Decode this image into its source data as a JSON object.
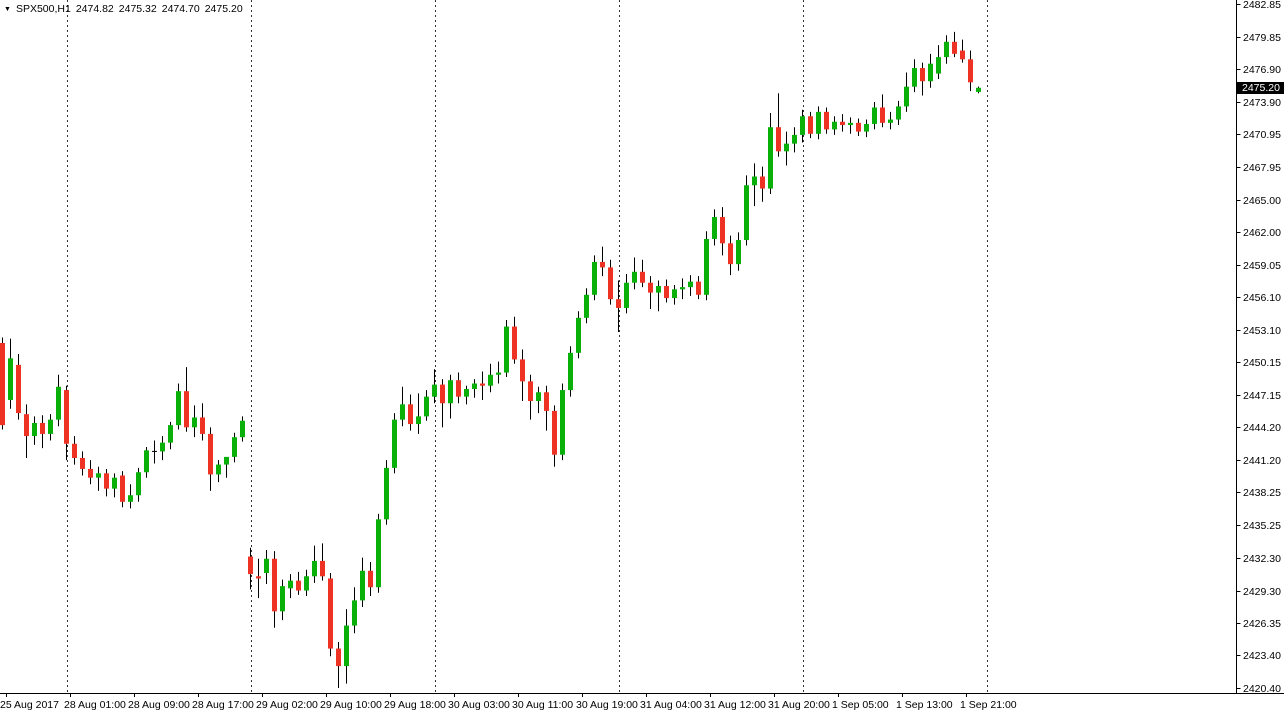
{
  "title": {
    "symbol_tf": "SPX500,H1",
    "open": "2474.82",
    "high": "2475.32",
    "low": "2474.70",
    "close": "2475.20"
  },
  "price_axis": {
    "labels": [
      "2482.85",
      "2479.85",
      "2476.90",
      "2473.90",
      "2470.95",
      "2467.95",
      "2465.00",
      "2462.00",
      "2459.05",
      "2456.10",
      "2453.10",
      "2450.15",
      "2447.15",
      "2444.20",
      "2441.20",
      "2438.25",
      "2435.25",
      "2432.30",
      "2429.30",
      "2426.35",
      "2423.40",
      "2420.40"
    ],
    "current_price": "2475.20"
  },
  "time_axis": {
    "labels": [
      "25 Aug 2017",
      "28 Aug 01:00",
      "28 Aug 09:00",
      "28 Aug 17:00",
      "29 Aug 02:00",
      "29 Aug 10:00",
      "29 Aug 18:00",
      "30 Aug 03:00",
      "30 Aug 11:00",
      "30 Aug 19:00",
      "31 Aug 04:00",
      "31 Aug 12:00",
      "31 Aug 20:00",
      "1 Sep 05:00",
      "1 Sep 13:00",
      "1 Sep 21:00"
    ]
  },
  "colors": {
    "background": "#ffffff",
    "bull": "#0ab00a",
    "bear": "#ee3224",
    "wick": "#000000",
    "grid": "#333333",
    "axis": "#000000",
    "label": "#000000",
    "badge_bg": "#000000",
    "badge_text": "#ffffff"
  },
  "chart_data": {
    "type": "candlestick",
    "title": "SPX500,H1",
    "symbol": "SPX500",
    "timeframe": "H1",
    "current_candle": {
      "open": 2474.82,
      "high": 2475.32,
      "low": 2474.7,
      "close": 2475.2
    },
    "price_range": [
      2420.4,
      2482.85
    ],
    "grid": "vertical-dashed-day-separators",
    "legend_position": "none",
    "day_separators": [
      8.125,
      31.125,
      54.125,
      77.125,
      100.125,
      123.125
    ],
    "candles": [
      [
        2451.9,
        2452.4,
        2444.0,
        2444.4
      ],
      [
        2446.7,
        2452.3,
        2445.9,
        2450.5
      ],
      [
        2449.9,
        2450.9,
        2444.9,
        2445.5
      ],
      [
        2445.4,
        2446.3,
        2441.4,
        2443.4
      ],
      [
        2443.4,
        2445.2,
        2442.6,
        2444.6
      ],
      [
        2444.6,
        2445.3,
        2442.3,
        2443.6
      ],
      [
        2443.6,
        2445.4,
        2443.0,
        2444.9
      ],
      [
        2444.9,
        2449.0,
        2444.3,
        2447.9
      ],
      [
        2447.6,
        2448.0,
        2441.2,
        2442.7
      ],
      [
        2442.7,
        2443.4,
        2440.8,
        2441.4
      ],
      [
        2441.4,
        2442.0,
        2439.8,
        2440.4
      ],
      [
        2440.4,
        2441.2,
        2439.0,
        2439.6
      ],
      [
        2439.6,
        2440.6,
        2438.4,
        2440.0
      ],
      [
        2440.0,
        2440.4,
        2437.9,
        2438.6
      ],
      [
        2438.6,
        2440.0,
        2437.8,
        2439.6
      ],
      [
        2439.8,
        2440.2,
        2436.9,
        2437.4
      ],
      [
        2437.4,
        2439.0,
        2436.8,
        2438.0
      ],
      [
        2438.0,
        2440.5,
        2437.4,
        2440.1
      ],
      [
        2440.1,
        2442.4,
        2439.6,
        2442.1
      ],
      [
        2442.1,
        2443.0,
        2440.9,
        2442.0
      ],
      [
        2442.0,
        2443.4,
        2441.2,
        2442.8
      ],
      [
        2442.8,
        2444.7,
        2442.2,
        2444.4
      ],
      [
        2444.4,
        2448.2,
        2444.0,
        2447.5
      ],
      [
        2447.5,
        2449.7,
        2443.8,
        2444.2
      ],
      [
        2444.2,
        2446.2,
        2443.3,
        2445.1
      ],
      [
        2445.1,
        2446.4,
        2443.0,
        2443.6
      ],
      [
        2443.6,
        2444.2,
        2438.4,
        2439.9
      ],
      [
        2439.9,
        2441.2,
        2439.2,
        2440.8
      ],
      [
        2440.8,
        2441.4,
        2439.6,
        2441.5
      ],
      [
        2441.5,
        2443.7,
        2441.0,
        2443.3
      ],
      [
        2443.3,
        2445.2,
        2442.9,
        2444.8
      ],
      [
        2432.4,
        2433.2,
        2429.4,
        2430.8
      ],
      [
        2430.6,
        2432.2,
        2428.6,
        2430.4
      ],
      [
        2430.9,
        2433.0,
        2429.9,
        2432.2
      ],
      [
        2432.2,
        2432.9,
        2425.9,
        2427.4
      ],
      [
        2427.4,
        2430.3,
        2426.6,
        2429.7
      ],
      [
        2429.5,
        2430.8,
        2428.6,
        2430.2
      ],
      [
        2430.2,
        2431.0,
        2428.9,
        2429.3
      ],
      [
        2429.3,
        2431.2,
        2428.8,
        2430.6
      ],
      [
        2430.6,
        2433.4,
        2430.0,
        2432.0
      ],
      [
        2432.0,
        2433.6,
        2430.2,
        2430.6
      ],
      [
        2430.4,
        2430.9,
        2423.3,
        2424.0
      ],
      [
        2424.0,
        2424.6,
        2420.4,
        2422.4
      ],
      [
        2422.4,
        2427.6,
        2420.8,
        2426.1
      ],
      [
        2426.1,
        2429.6,
        2425.4,
        2428.4
      ],
      [
        2428.4,
        2432.3,
        2427.8,
        2431.1
      ],
      [
        2431.1,
        2431.9,
        2428.8,
        2429.6
      ],
      [
        2429.6,
        2436.3,
        2429.1,
        2435.8
      ],
      [
        2435.8,
        2441.2,
        2435.3,
        2440.5
      ],
      [
        2440.5,
        2445.5,
        2440.0,
        2444.9
      ],
      [
        2444.9,
        2447.9,
        2444.3,
        2446.3
      ],
      [
        2446.3,
        2447.2,
        2443.9,
        2444.5
      ],
      [
        2444.5,
        2447.3,
        2443.6,
        2445.2
      ],
      [
        2445.2,
        2447.6,
        2444.8,
        2447.0
      ],
      [
        2447.0,
        2449.5,
        2446.4,
        2448.1
      ],
      [
        2448.1,
        2448.6,
        2444.2,
        2446.4
      ],
      [
        2446.4,
        2449.0,
        2445.0,
        2448.5
      ],
      [
        2448.5,
        2449.2,
        2446.4,
        2447.0
      ],
      [
        2447.0,
        2448.0,
        2446.3,
        2447.7
      ],
      [
        2447.7,
        2448.6,
        2446.9,
        2448.2
      ],
      [
        2448.2,
        2449.3,
        2446.7,
        2448.0
      ],
      [
        2448.0,
        2450.0,
        2447.4,
        2449.0
      ],
      [
        2449.0,
        2450.2,
        2448.2,
        2449.2
      ],
      [
        2449.2,
        2454.0,
        2448.8,
        2453.4
      ],
      [
        2453.4,
        2454.3,
        2450.0,
        2450.4
      ],
      [
        2450.4,
        2451.3,
        2446.6,
        2448.4
      ],
      [
        2448.4,
        2449.0,
        2444.9,
        2446.6
      ],
      [
        2446.6,
        2447.9,
        2445.5,
        2447.4
      ],
      [
        2447.4,
        2448.0,
        2443.9,
        2445.7
      ],
      [
        2445.7,
        2446.2,
        2440.6,
        2441.7
      ],
      [
        2441.7,
        2448.2,
        2441.2,
        2447.6
      ],
      [
        2447.6,
        2451.6,
        2447.0,
        2451.0
      ],
      [
        2451.0,
        2454.8,
        2450.5,
        2454.2
      ],
      [
        2454.2,
        2456.9,
        2453.7,
        2456.3
      ],
      [
        2456.3,
        2459.9,
        2455.8,
        2459.3
      ],
      [
        2459.3,
        2460.7,
        2458.0,
        2458.8
      ],
      [
        2458.8,
        2459.5,
        2455.4,
        2455.9
      ],
      [
        2455.9,
        2457.6,
        2452.9,
        2455.1
      ],
      [
        2455.1,
        2458.2,
        2454.6,
        2457.4
      ],
      [
        2457.4,
        2459.7,
        2456.8,
        2458.4
      ],
      [
        2458.4,
        2459.5,
        2457.0,
        2457.4
      ],
      [
        2457.4,
        2458.0,
        2455.0,
        2456.5
      ],
      [
        2456.5,
        2457.6,
        2454.8,
        2457.1
      ],
      [
        2457.1,
        2457.7,
        2455.6,
        2456.0
      ],
      [
        2456.0,
        2457.2,
        2455.4,
        2456.8
      ],
      [
        2456.8,
        2457.8,
        2455.9,
        2457.0
      ],
      [
        2457.0,
        2458.1,
        2456.2,
        2457.5
      ],
      [
        2457.5,
        2458.0,
        2455.9,
        2456.3
      ],
      [
        2456.3,
        2462.1,
        2455.8,
        2461.4
      ],
      [
        2461.4,
        2464.1,
        2460.8,
        2463.4
      ],
      [
        2463.4,
        2464.3,
        2459.9,
        2461.0
      ],
      [
        2461.0,
        2461.7,
        2458.1,
        2459.1
      ],
      [
        2459.1,
        2462.0,
        2458.5,
        2461.3
      ],
      [
        2461.3,
        2467.2,
        2460.8,
        2466.3
      ],
      [
        2466.3,
        2468.3,
        2464.4,
        2467.1
      ],
      [
        2467.1,
        2468.0,
        2464.8,
        2466.0
      ],
      [
        2466.0,
        2472.9,
        2465.5,
        2471.6
      ],
      [
        2471.6,
        2474.7,
        2468.9,
        2469.4
      ],
      [
        2469.4,
        2471.2,
        2468.1,
        2470.1
      ],
      [
        2470.1,
        2471.6,
        2469.3,
        2470.9
      ],
      [
        2470.9,
        2473.2,
        2470.2,
        2472.6
      ],
      [
        2472.6,
        2473.0,
        2470.6,
        2471.0
      ],
      [
        2471.0,
        2473.5,
        2470.5,
        2473.0
      ],
      [
        2473.0,
        2473.4,
        2471.0,
        2471.4
      ],
      [
        2471.4,
        2472.6,
        2470.9,
        2472.1
      ],
      [
        2472.1,
        2472.8,
        2471.2,
        2471.8
      ],
      [
        2471.8,
        2472.5,
        2471.0,
        2472.0
      ],
      [
        2472.0,
        2472.4,
        2470.8,
        2471.2
      ],
      [
        2471.2,
        2472.3,
        2470.7,
        2471.9
      ],
      [
        2471.9,
        2473.9,
        2471.4,
        2473.4
      ],
      [
        2473.4,
        2474.6,
        2471.6,
        2472.0
      ],
      [
        2472.0,
        2473.0,
        2471.4,
        2472.3
      ],
      [
        2472.3,
        2474.0,
        2471.8,
        2473.5
      ],
      [
        2473.5,
        2476.6,
        2473.0,
        2475.3
      ],
      [
        2475.3,
        2477.8,
        2474.8,
        2477.0
      ],
      [
        2477.0,
        2477.5,
        2474.5,
        2475.8
      ],
      [
        2475.8,
        2478.3,
        2475.2,
        2477.4
      ],
      [
        2476.5,
        2479.1,
        2476.0,
        2478.0
      ],
      [
        2478.0,
        2480.0,
        2477.4,
        2479.4
      ],
      [
        2479.4,
        2480.3,
        2478.0,
        2478.3
      ],
      [
        2478.6,
        2479.6,
        2477.5,
        2477.8
      ],
      [
        2477.8,
        2478.6,
        2474.9,
        2475.7
      ],
      [
        2474.82,
        2475.32,
        2474.7,
        2475.2
      ]
    ]
  }
}
